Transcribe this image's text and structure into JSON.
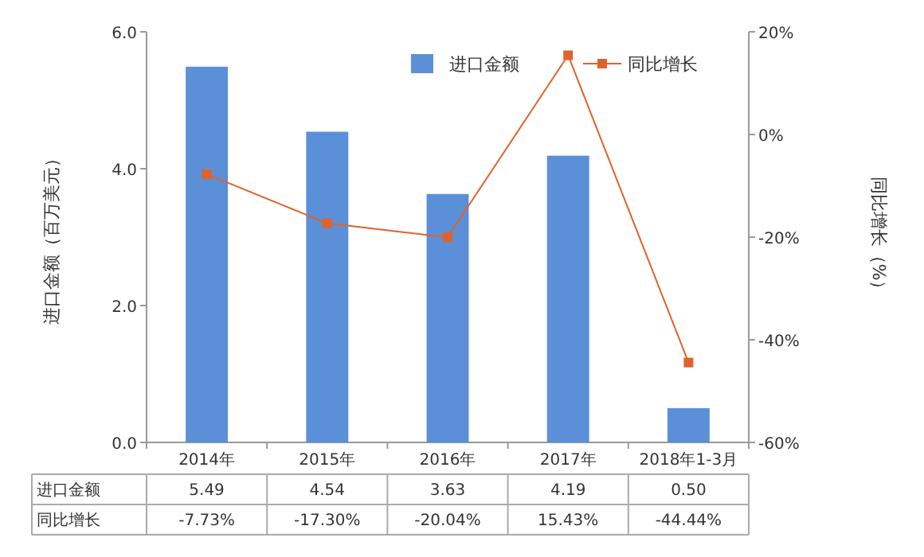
{
  "chart_data": {
    "type": "bar",
    "categories": [
      "2014年",
      "2015年",
      "2016年",
      "2017年",
      "2018年1-3月"
    ],
    "ylabel": "进口金额（百万美元）",
    "y2label": "同比增长（%）",
    "ylim": [
      0,
      6
    ],
    "yticks": [
      {
        "value": 0,
        "label": "0.0"
      },
      {
        "value": 2,
        "label": "2.0"
      },
      {
        "value": 4,
        "label": "4.0"
      },
      {
        "value": 6,
        "label": "6.0"
      }
    ],
    "y2lim": [
      -60,
      20
    ],
    "y2ticks": [
      {
        "value": -60,
        "label": "-60%"
      },
      {
        "value": -40,
        "label": "-40%"
      },
      {
        "value": -20,
        "label": "-20%"
      },
      {
        "value": 0,
        "label": "0%"
      },
      {
        "value": 20,
        "label": "20%"
      }
    ],
    "legend": "top right",
    "marker": "square",
    "series": [
      {
        "name": "进口金额",
        "color": "#5b8fd8",
        "values": [
          5.49,
          4.54,
          3.63,
          4.19,
          0.5
        ],
        "value_labels": [
          "5.49",
          "4.54",
          "3.63",
          "4.19",
          "0.50"
        ]
      },
      {
        "name": "同比增长",
        "type": "line",
        "axis": "y2",
        "color": "#e0622b",
        "values": [
          -7.73,
          -17.3,
          -20.04,
          15.43,
          -44.44
        ],
        "value_labels": [
          "-7.73%",
          "-17.30%",
          "-20.04%",
          "15.43%",
          "-44.44%"
        ]
      }
    ]
  }
}
